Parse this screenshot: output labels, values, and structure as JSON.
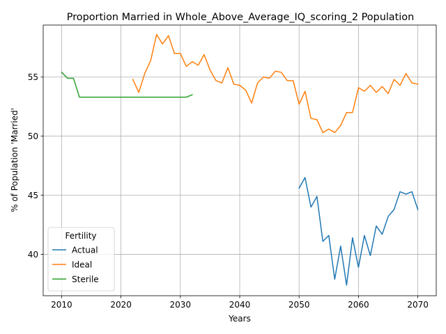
{
  "chart_data": {
    "type": "line",
    "title": "Proportion Married in Whole_Above_Average_IQ_scoring_2 Population",
    "xlabel": "Years",
    "ylabel": "% of Population 'Married'",
    "xlim": [
      2006.9,
      2073.1
    ],
    "ylim": [
      36.5,
      59.4
    ],
    "xticks": [
      2010,
      2020,
      2030,
      2040,
      2050,
      2060,
      2070
    ],
    "yticks": [
      40,
      45,
      50,
      55
    ],
    "grid": true,
    "legend": {
      "title": "Fertility",
      "placement": "lower-left"
    },
    "series": [
      {
        "name": "Actual",
        "color": "#1f77b4",
        "x": [
          2050,
          2051,
          2052,
          2053,
          2054,
          2055,
          2056,
          2057,
          2058,
          2059,
          2060,
          2061,
          2062,
          2063,
          2064,
          2065,
          2066,
          2067,
          2068,
          2069,
          2070
        ],
        "y": [
          45.6,
          46.5,
          44.0,
          44.9,
          41.1,
          41.6,
          37.9,
          40.7,
          37.4,
          41.4,
          38.9,
          41.6,
          39.9,
          42.4,
          41.7,
          43.2,
          43.8,
          45.3,
          45.1,
          45.3,
          43.8
        ]
      },
      {
        "name": "Ideal",
        "color": "#ff7f0e",
        "x": [
          2022,
          2023,
          2024,
          2025,
          2026,
          2027,
          2028,
          2029,
          2030,
          2031,
          2032,
          2033,
          2034,
          2035,
          2036,
          2037,
          2038,
          2039,
          2040,
          2041,
          2042,
          2043,
          2044,
          2045,
          2046,
          2047,
          2048,
          2049,
          2050,
          2051,
          2052,
          2053,
          2054,
          2055,
          2056,
          2057,
          2058,
          2059,
          2060,
          2061,
          2062,
          2063,
          2064,
          2065,
          2066,
          2067,
          2068,
          2069,
          2070
        ],
        "y": [
          54.8,
          53.7,
          55.3,
          56.4,
          58.6,
          57.8,
          58.5,
          57.0,
          57.0,
          55.9,
          56.3,
          56.0,
          56.9,
          55.6,
          54.7,
          54.5,
          55.8,
          54.4,
          54.3,
          53.9,
          52.8,
          54.5,
          55.0,
          54.9,
          55.5,
          55.4,
          54.7,
          54.7,
          52.7,
          53.8,
          51.5,
          51.4,
          50.3,
          50.6,
          50.3,
          50.9,
          52.0,
          52.0,
          54.1,
          53.8,
          54.3,
          53.7,
          54.2,
          53.6,
          54.8,
          54.3,
          55.3,
          54.5,
          54.4
        ]
      },
      {
        "name": "Sterile",
        "color": "#2ca02c",
        "x": [
          2010,
          2011,
          2012,
          2013,
          2014,
          2015,
          2016,
          2017,
          2018,
          2019,
          2020,
          2021,
          2022,
          2023,
          2024,
          2025,
          2026,
          2027,
          2028,
          2029,
          2030,
          2031,
          2032
        ],
        "y": [
          55.4,
          54.9,
          54.9,
          53.3,
          53.3,
          53.3,
          53.3,
          53.3,
          53.3,
          53.3,
          53.3,
          53.3,
          53.3,
          53.3,
          53.3,
          53.3,
          53.3,
          53.3,
          53.3,
          53.3,
          53.3,
          53.3,
          53.5
        ]
      }
    ]
  }
}
